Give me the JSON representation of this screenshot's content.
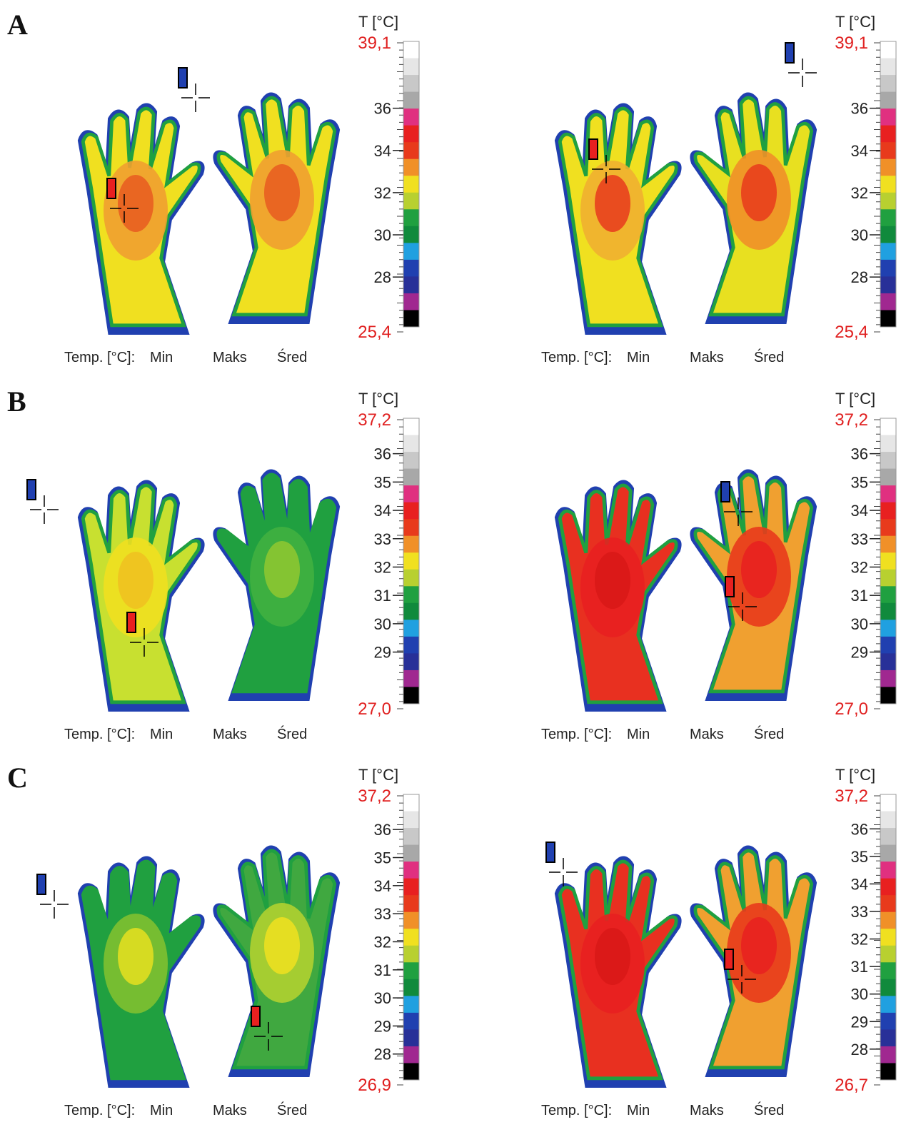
{
  "rows": [
    {
      "label": "A",
      "panels": [
        {
          "scale_title": "T [°C]",
          "max_label": "39,1",
          "min_label": "25,4",
          "ticks": [
            "36",
            "34",
            "32",
            "30",
            "28"
          ],
          "footer": [
            "Temp. [°C]:",
            "Min",
            "Maks",
            "Śred"
          ]
        },
        {
          "scale_title": "T [°C]",
          "max_label": "39,1",
          "min_label": "25,4",
          "ticks": [
            "36",
            "34",
            "32",
            "30",
            "28"
          ],
          "footer": [
            "Temp. [°C]:",
            "Min",
            "Maks",
            "Śred"
          ]
        }
      ]
    },
    {
      "label": "B",
      "panels": [
        {
          "scale_title": "T [°C]",
          "max_label": "37,2",
          "min_label": "27,0",
          "ticks": [
            "36",
            "35",
            "34",
            "33",
            "32",
            "31",
            "30",
            "29"
          ],
          "footer": [
            "Temp. [°C]:",
            "Min",
            "Maks",
            "Śred"
          ]
        },
        {
          "scale_title": "T [°C]",
          "max_label": "37,2",
          "min_label": "27,0",
          "ticks": [
            "36",
            "35",
            "34",
            "33",
            "32",
            "31",
            "30",
            "29"
          ],
          "footer": [
            "Temp. [°C]:",
            "Min",
            "Maks",
            "Śred"
          ]
        }
      ]
    },
    {
      "label": "C",
      "panels": [
        {
          "scale_title": "T [°C]",
          "max_label": "37,2",
          "min_label": "26,9",
          "ticks": [
            "36",
            "35",
            "34",
            "33",
            "32",
            "31",
            "30",
            "29",
            "28"
          ],
          "footer": [
            "Temp. [°C]:",
            "Min",
            "Maks",
            "Śred"
          ]
        },
        {
          "scale_title": "T [°C]",
          "max_label": "37,2",
          "min_label": "26,7",
          "ticks": [
            "36",
            "35",
            "34",
            "33",
            "32",
            "31",
            "30",
            "29",
            "28"
          ],
          "footer": [
            "Temp. [°C]:",
            "Min",
            "Maks",
            "Śred"
          ]
        }
      ]
    }
  ]
}
